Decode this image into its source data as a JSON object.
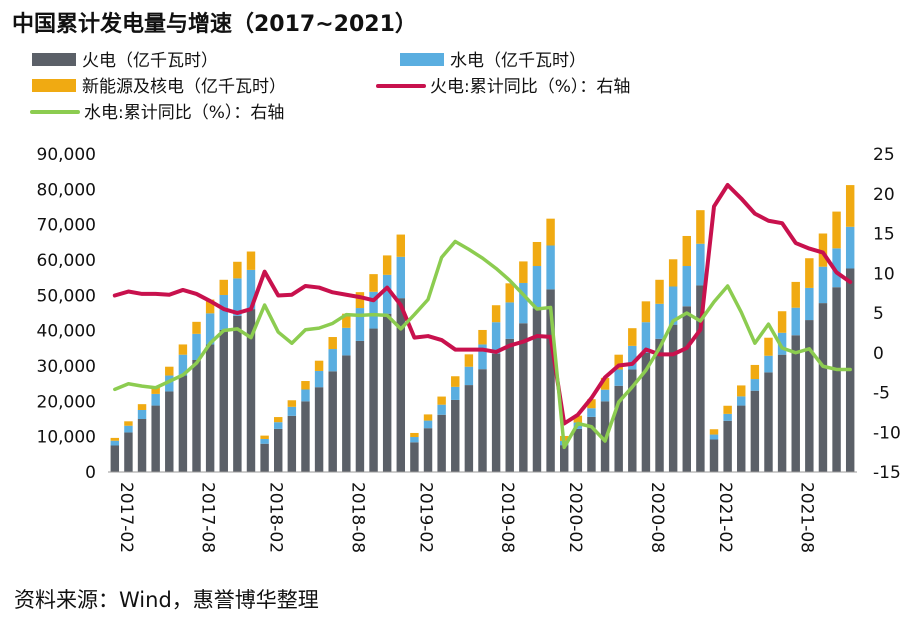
{
  "title": "中国累计发电量与增速（2017~2021）",
  "source": "资料来源：Wind，惠誉博华整理",
  "chart_data": {
    "type": "bar",
    "stacked": true,
    "legend_position": "top",
    "grid": false,
    "colors": {
      "thermal": "#5b6068",
      "hydro": "#5aaee0",
      "new_energy": "#f0aa12",
      "thermal_yoy": "#c8114d",
      "hydro_yoy": "#8ccc50"
    },
    "x": [
      "2017-02",
      "2017-03",
      "2017-04",
      "2017-05",
      "2017-06",
      "2017-07",
      "2017-08",
      "2017-09",
      "2017-10",
      "2017-11",
      "2017-12",
      "2018-02",
      "2018-03",
      "2018-04",
      "2018-05",
      "2018-06",
      "2018-07",
      "2018-08",
      "2018-09",
      "2018-10",
      "2018-11",
      "2018-12",
      "2019-02",
      "2019-03",
      "2019-04",
      "2019-05",
      "2019-06",
      "2019-07",
      "2019-08",
      "2019-09",
      "2019-10",
      "2019-11",
      "2019-12",
      "2020-02",
      "2020-03",
      "2020-04",
      "2020-05",
      "2020-06",
      "2020-07",
      "2020-08",
      "2020-09",
      "2020-10",
      "2020-11",
      "2020-12",
      "2021-02",
      "2021-03",
      "2021-04",
      "2021-05",
      "2021-06",
      "2021-07",
      "2021-08",
      "2021-09",
      "2021-10",
      "2021-11",
      "2021-12"
    ],
    "x_tick_labels": [
      "2017-02",
      "2017-08",
      "2018-02",
      "2018-08",
      "2019-02",
      "2019-08",
      "2020-02",
      "2020-08",
      "2021-02",
      "2021-08"
    ],
    "ylim_left": [
      0,
      90000
    ],
    "yticks_left": [
      "0",
      "10,000",
      "20,000",
      "30,000",
      "40,000",
      "50,000",
      "60,000",
      "70,000",
      "80,000",
      "90,000"
    ],
    "ylim_right": [
      -15,
      25
    ],
    "yticks_right": [
      "-15",
      "-10",
      "-5",
      "0",
      "5",
      "10",
      "15",
      "20",
      "25"
    ],
    "series": [
      {
        "name": "火电（亿千瓦时）",
        "key": "thermal",
        "kind": "bar",
        "axis": "left",
        "values": [
          7500,
          11200,
          15000,
          18800,
          22800,
          27300,
          31700,
          36100,
          40200,
          44200,
          46100,
          8000,
          12200,
          15900,
          20000,
          24000,
          28500,
          33000,
          37100,
          40600,
          44800,
          49200,
          8400,
          12400,
          16200,
          20400,
          24600,
          29100,
          33500,
          37700,
          42100,
          46300,
          51700,
          7600,
          12200,
          15600,
          20000,
          24400,
          29000,
          33700,
          37700,
          41700,
          46900,
          52800,
          9200,
          14500,
          18800,
          23000,
          28200,
          33200,
          38700,
          43000,
          47800,
          52300,
          57600
        ]
      },
      {
        "name": "水电（亿千瓦时）",
        "key": "hydro",
        "kind": "bar",
        "axis": "left",
        "values": [
          1350,
          1900,
          2550,
          3300,
          4500,
          5900,
          7400,
          8800,
          9900,
          10600,
          11100,
          1350,
          1900,
          2550,
          3350,
          4600,
          6300,
          7800,
          9300,
          10400,
          11000,
          11700,
          1500,
          2150,
          2850,
          3700,
          5200,
          7000,
          8900,
          10300,
          11400,
          12000,
          12400,
          1200,
          1800,
          2450,
          3300,
          4600,
          6700,
          8700,
          9900,
          10800,
          11400,
          11800,
          1400,
          1950,
          2600,
          3300,
          4700,
          6200,
          7800,
          9100,
          10300,
          11000,
          11800
        ]
      },
      {
        "name": "新能源及核电（亿千瓦时）",
        "key": "new_energy",
        "kind": "bar",
        "axis": "left",
        "values": [
          800,
          1250,
          1650,
          2100,
          2500,
          2900,
          3400,
          3900,
          4300,
          4700,
          5200,
          950,
          1450,
          1850,
          2400,
          2900,
          3400,
          4000,
          4500,
          5000,
          5500,
          6300,
          1150,
          1750,
          2300,
          3000,
          3500,
          4100,
          4800,
          5400,
          6100,
          6800,
          7600,
          1400,
          1950,
          2550,
          3350,
          4200,
          5000,
          5900,
          6800,
          7700,
          8500,
          9500,
          1500,
          2300,
          3100,
          4000,
          5100,
          6100,
          7300,
          8400,
          9400,
          10400,
          11800
        ]
      },
      {
        "name": "火电:累计同比（%）：右轴",
        "key": "thermal_yoy",
        "kind": "line",
        "axis": "right",
        "values": [
          7.2,
          7.7,
          7.4,
          7.4,
          7.3,
          7.9,
          7.4,
          6.5,
          5.5,
          5.0,
          5.5,
          10.2,
          7.2,
          7.3,
          8.4,
          8.2,
          7.6,
          7.3,
          7.0,
          6.6,
          8.2,
          6.0,
          1.9,
          2.1,
          1.6,
          0.4,
          0.4,
          0.4,
          0.1,
          0.9,
          1.4,
          2.1,
          2.0,
          -8.9,
          -7.8,
          -5.7,
          -3.1,
          -1.6,
          -1.4,
          0.4,
          -0.2,
          -0.2,
          0.6,
          2.9,
          18.4,
          21.1,
          19.4,
          17.5,
          16.6,
          16.3,
          13.8,
          13.1,
          12.6,
          10.1,
          8.9
        ]
      },
      {
        "name": "水电:累计同比（%）：右轴",
        "key": "hydro_yoy",
        "kind": "line",
        "axis": "right",
        "values": [
          -4.6,
          -3.9,
          -4.2,
          -4.4,
          -3.6,
          -2.8,
          -1.3,
          1.2,
          2.8,
          3.0,
          1.9,
          6.0,
          2.6,
          1.2,
          2.9,
          3.1,
          3.7,
          4.8,
          4.7,
          4.8,
          4.7,
          3.0,
          4.8,
          6.7,
          12.0,
          14.0,
          13.0,
          11.9,
          10.6,
          9.1,
          7.3,
          5.5,
          5.7,
          -11.9,
          -8.9,
          -9.3,
          -11.1,
          -6.2,
          -4.3,
          -2.2,
          0.6,
          4.0,
          5.0,
          4.0,
          6.4,
          8.4,
          5.1,
          1.2,
          3.6,
          0.6,
          0.0,
          0.5,
          -1.7,
          -2.1,
          -2.1
        ]
      }
    ]
  }
}
